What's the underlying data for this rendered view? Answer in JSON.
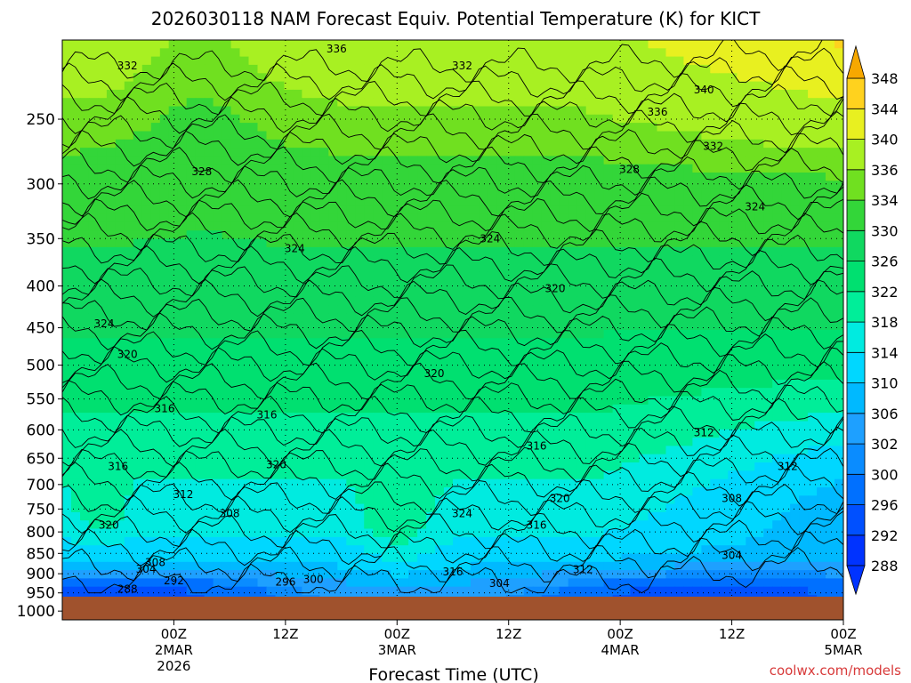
{
  "chart_data": {
    "type": "heatmap",
    "title": "2026030118 NAM Forecast Equiv. Potential Temperature (K) for KICT",
    "xlabel": "Forecast Time (UTC)",
    "ylabel": "",
    "credit": "coolwx.com/models",
    "x_range_hours": [
      -6,
      78
    ],
    "x_ticks": [
      {
        "hours": 6,
        "l1": "00Z",
        "l2": "2MAR",
        "l3": "2026"
      },
      {
        "hours": 18,
        "l1": "12Z",
        "l2": "",
        "l3": ""
      },
      {
        "hours": 30,
        "l1": "00Z",
        "l2": "3MAR",
        "l3": ""
      },
      {
        "hours": 42,
        "l1": "12Z",
        "l2": "",
        "l3": ""
      },
      {
        "hours": 54,
        "l1": "00Z",
        "l2": "4MAR",
        "l3": ""
      },
      {
        "hours": 66,
        "l1": "12Z",
        "l2": "",
        "l3": ""
      },
      {
        "hours": 78,
        "l1": "00Z",
        "l2": "5MAR",
        "l3": ""
      }
    ],
    "pressure_range_hpa": [
      200,
      1025
    ],
    "y_ticks": [
      250,
      300,
      350,
      400,
      450,
      500,
      550,
      600,
      650,
      700,
      750,
      800,
      850,
      900,
      950,
      1000
    ],
    "ground_level_hpa": 960,
    "ground_color": "#a0522d",
    "colorbar": {
      "levels": [
        288,
        292,
        296,
        300,
        302,
        306,
        310,
        314,
        318,
        322,
        326,
        330,
        334,
        336,
        340,
        344,
        348
      ],
      "colors": [
        "#0033ff",
        "#0050ff",
        "#0070ff",
        "#0a8cff",
        "#1ea0ff",
        "#00b9ff",
        "#00d7ff",
        "#00ebe0",
        "#00ee99",
        "#00e070",
        "#10d860",
        "#33d639",
        "#70e020",
        "#a8f022",
        "#e8f020",
        "#ffd21e",
        "#f7a800"
      ]
    },
    "contour_labels": [
      {
        "v": "336",
        "t": 23.5,
        "p": 205
      },
      {
        "v": "332",
        "t": 1,
        "p": 215
      },
      {
        "v": "332",
        "t": 37,
        "p": 215
      },
      {
        "v": "340",
        "t": 63,
        "p": 230
      },
      {
        "v": "336",
        "t": 58,
        "p": 245
      },
      {
        "v": "332",
        "t": 64,
        "p": 270
      },
      {
        "v": "328",
        "t": 9,
        "p": 290
      },
      {
        "v": "328",
        "t": 55,
        "p": 288
      },
      {
        "v": "324",
        "t": 68.5,
        "p": 320
      },
      {
        "v": "324",
        "t": 19,
        "p": 360
      },
      {
        "v": "324",
        "t": 40,
        "p": 350
      },
      {
        "v": "320",
        "t": 47,
        "p": 403
      },
      {
        "v": "324",
        "t": -1.5,
        "p": 445
      },
      {
        "v": "320",
        "t": 1,
        "p": 485
      },
      {
        "v": "320",
        "t": 34,
        "p": 512
      },
      {
        "v": "316",
        "t": 5,
        "p": 565
      },
      {
        "v": "316",
        "t": 16,
        "p": 575
      },
      {
        "v": "312",
        "t": 63,
        "p": 605
      },
      {
        "v": "316",
        "t": 45,
        "p": 628
      },
      {
        "v": "316",
        "t": 0,
        "p": 665
      },
      {
        "v": "320",
        "t": 17,
        "p": 662
      },
      {
        "v": "312",
        "t": 72,
        "p": 665
      },
      {
        "v": "312",
        "t": 7,
        "p": 720
      },
      {
        "v": "308",
        "t": 66,
        "p": 728
      },
      {
        "v": "320",
        "t": 47.5,
        "p": 728
      },
      {
        "v": "308",
        "t": 12,
        "p": 760
      },
      {
        "v": "324",
        "t": 37,
        "p": 760
      },
      {
        "v": "320",
        "t": -1,
        "p": 785
      },
      {
        "v": "316",
        "t": 45,
        "p": 785
      },
      {
        "v": "304",
        "t": 82,
        "p": 740
      },
      {
        "v": "304",
        "t": 66,
        "p": 855
      },
      {
        "v": "308",
        "t": 4,
        "p": 872
      },
      {
        "v": "304",
        "t": 3,
        "p": 888
      },
      {
        "v": "316",
        "t": 36,
        "p": 895
      },
      {
        "v": "312",
        "t": 50,
        "p": 890
      },
      {
        "v": "292",
        "t": 6,
        "p": 918
      },
      {
        "v": "296",
        "t": 18,
        "p": 922
      },
      {
        "v": "300",
        "t": 21,
        "p": 915
      },
      {
        "v": "304",
        "t": 41,
        "p": 925
      },
      {
        "v": "288",
        "t": 1,
        "p": 940
      }
    ]
  }
}
